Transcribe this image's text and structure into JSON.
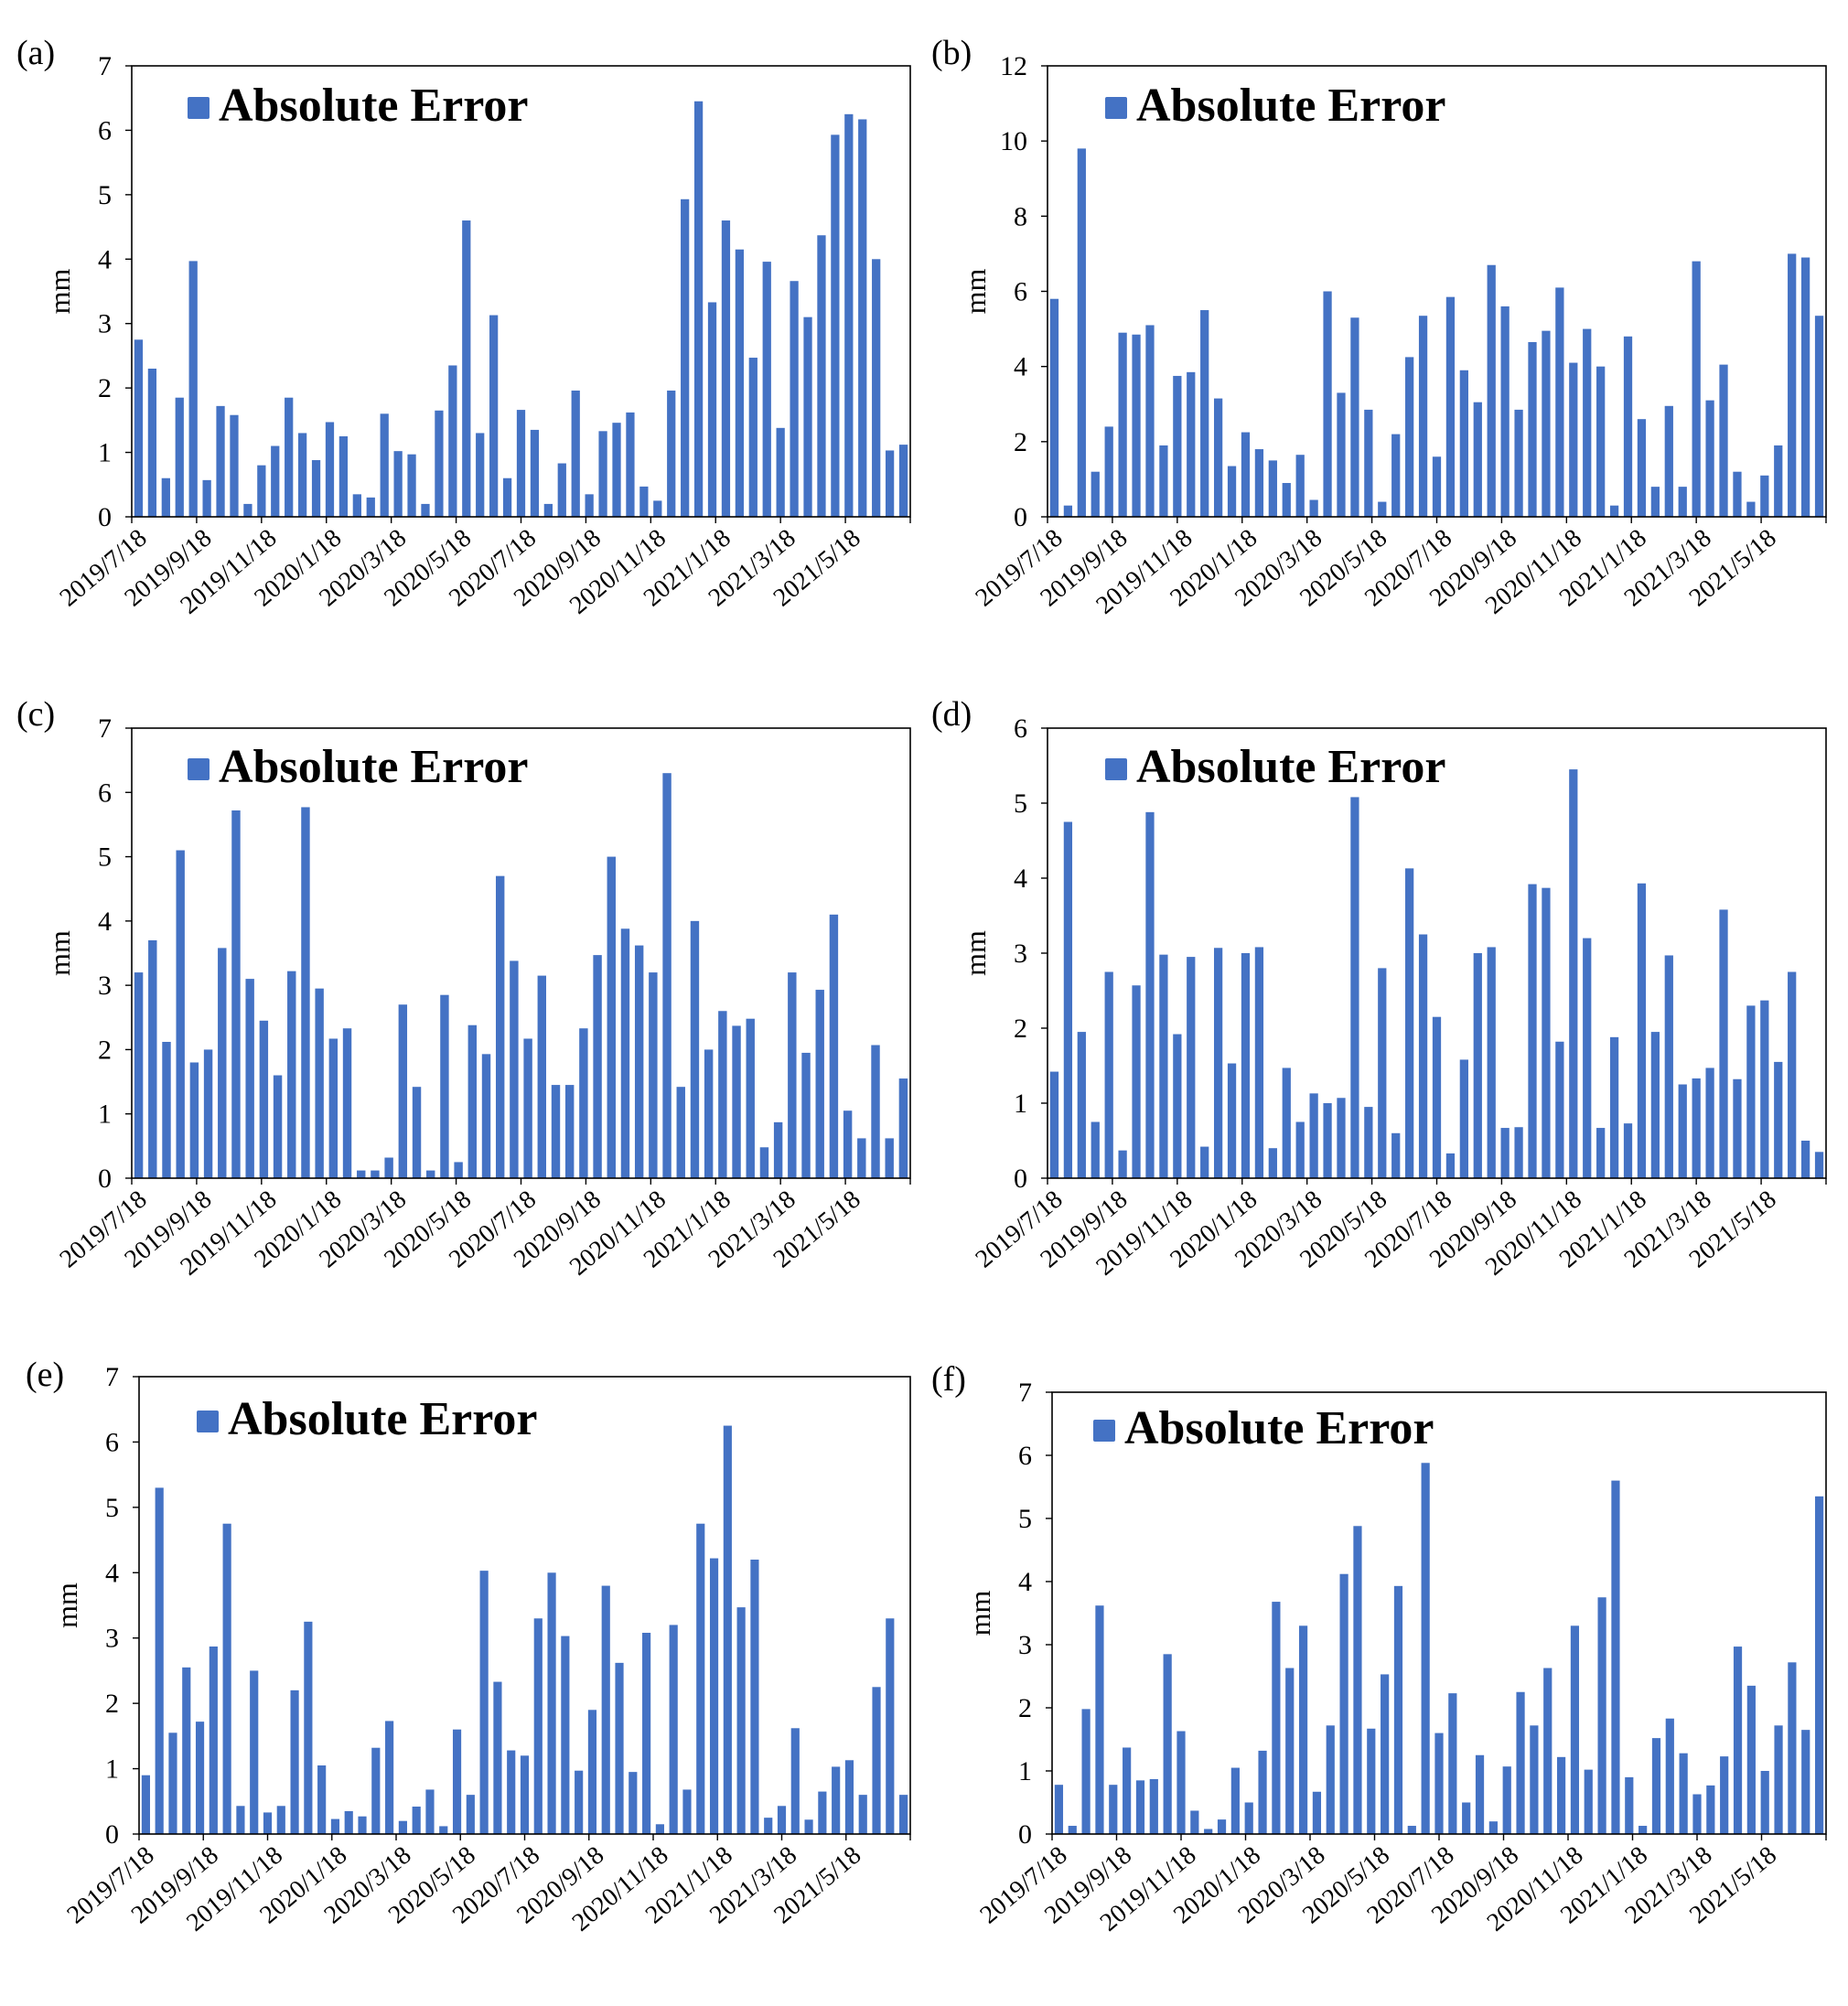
{
  "figure": {
    "legend_marker_color": "#4472C4",
    "bar_color": "#4472C4"
  },
  "chart_data": [
    {
      "panel_label": "(a)",
      "type": "bar",
      "legend": "Absolute Error",
      "ylabel": "mm",
      "ylim": [
        0,
        7
      ],
      "yticks": [
        "0",
        "1",
        "2",
        "3",
        "4",
        "5",
        "6",
        "7"
      ],
      "xtick_labels": [
        "2019/7/18",
        "2019/9/18",
        "2019/11/18",
        "2020/1/18",
        "2020/3/18",
        "2020/5/18",
        "2020/7/18",
        "2020/9/18",
        "2020/11/18",
        "2021/1/18",
        "2021/3/18",
        "2021/5/18"
      ],
      "values": [
        2.75,
        2.3,
        0.6,
        1.85,
        3.97,
        0.57,
        1.72,
        1.58,
        0.2,
        0.8,
        1.1,
        1.85,
        1.3,
        0.88,
        1.47,
        1.25,
        0.35,
        0.3,
        1.6,
        1.02,
        0.97,
        0.2,
        1.65,
        2.35,
        4.6,
        1.3,
        3.13,
        0.6,
        1.66,
        1.35,
        0.2,
        0.83,
        1.96,
        0.35,
        1.33,
        1.46,
        1.62,
        0.47,
        0.25,
        1.96,
        4.93,
        6.45,
        3.33,
        4.6,
        4.15,
        2.47,
        3.96,
        1.38,
        3.66,
        3.1,
        4.37,
        5.93,
        6.25,
        6.17,
        4.0,
        1.03,
        1.12
      ]
    },
    {
      "panel_label": "(b)",
      "type": "bar",
      "legend": "Absolute Error",
      "ylabel": "mm",
      "ylim": [
        0,
        12
      ],
      "yticks": [
        "0",
        "2",
        "4",
        "6",
        "8",
        "10",
        "12"
      ],
      "xtick_labels": [
        "2019/7/18",
        "2019/9/18",
        "2019/11/18",
        "2020/1/18",
        "2020/3/18",
        "2020/5/18",
        "2020/7/18",
        "2020/9/18",
        "2020/11/18",
        "2021/1/18",
        "2021/3/18",
        "2021/5/18"
      ],
      "values": [
        5.8,
        0.3,
        9.8,
        1.2,
        2.4,
        4.9,
        4.85,
        5.1,
        1.9,
        3.75,
        3.85,
        5.5,
        3.15,
        1.35,
        2.25,
        1.8,
        1.5,
        0.9,
        1.65,
        0.45,
        6.0,
        3.3,
        5.3,
        2.85,
        0.4,
        2.2,
        4.25,
        5.35,
        1.6,
        5.85,
        3.9,
        3.05,
        6.7,
        5.6,
        2.85,
        4.65,
        4.95,
        6.1,
        4.1,
        5.0,
        4.0,
        0.3,
        4.8,
        2.6,
        0.8,
        2.95,
        0.8,
        6.8,
        3.1,
        4.05,
        1.2,
        0.4,
        1.1,
        1.9,
        7.0,
        6.9,
        5.35
      ]
    },
    {
      "panel_label": "(c)",
      "type": "bar",
      "legend": "Absolute Error",
      "ylabel": "mm",
      "ylim": [
        0,
        7
      ],
      "yticks": [
        "0",
        "1",
        "2",
        "3",
        "4",
        "5",
        "6",
        "7"
      ],
      "xtick_labels": [
        "2019/7/18",
        "2019/9/18",
        "2019/11/18",
        "2020/1/18",
        "2020/3/18",
        "2020/5/18",
        "2020/7/18",
        "2020/9/18",
        "2020/11/18",
        "2021/1/18",
        "2021/3/18",
        "2021/5/18"
      ],
      "values": [
        3.2,
        3.7,
        2.12,
        5.1,
        1.8,
        2.0,
        3.58,
        5.72,
        3.1,
        2.45,
        1.6,
        3.22,
        5.77,
        2.95,
        2.17,
        2.33,
        0.12,
        0.12,
        0.32,
        2.7,
        1.42,
        0.12,
        2.85,
        0.25,
        2.38,
        1.93,
        4.7,
        3.38,
        2.17,
        3.15,
        1.45,
        1.45,
        2.33,
        3.47,
        5.0,
        3.88,
        3.62,
        3.2,
        6.3,
        1.42,
        4.0,
        2.0,
        2.6,
        2.37,
        2.48,
        0.48,
        0.87,
        3.2,
        1.95,
        2.93,
        4.1,
        1.05,
        0.62,
        2.07,
        0.62,
        1.55
      ]
    },
    {
      "panel_label": "(d)",
      "type": "bar",
      "legend": "Absolute Error",
      "ylabel": "mm",
      "ylim": [
        0,
        6
      ],
      "yticks": [
        "0",
        "1",
        "2",
        "3",
        "4",
        "5",
        "6"
      ],
      "xtick_labels": [
        "2019/7/18",
        "2019/9/18",
        "2019/11/18",
        "2020/1/18",
        "2020/3/18",
        "2020/5/18",
        "2020/7/18",
        "2020/9/18",
        "2020/11/18",
        "2021/1/18",
        "2021/3/18",
        "2021/5/18"
      ],
      "values": [
        1.42,
        4.75,
        1.95,
        0.75,
        2.75,
        0.37,
        2.57,
        4.88,
        2.98,
        1.92,
        2.95,
        0.42,
        3.07,
        1.53,
        3.0,
        3.08,
        0.4,
        1.47,
        0.75,
        1.13,
        1.0,
        1.07,
        5.08,
        0.95,
        2.8,
        0.6,
        4.13,
        3.25,
        2.15,
        0.33,
        1.58,
        3.0,
        3.08,
        0.67,
        0.68,
        3.92,
        3.87,
        1.82,
        5.45,
        3.2,
        0.67,
        1.88,
        0.73,
        3.93,
        1.95,
        2.97,
        1.25,
        1.33,
        1.47,
        3.58,
        1.32,
        2.3,
        2.37,
        1.55,
        2.75,
        0.5,
        0.35
      ]
    },
    {
      "panel_label": "(e)",
      "type": "bar",
      "legend": "Absolute Error",
      "ylabel": "mm",
      "ylim": [
        0,
        7
      ],
      "yticks": [
        "0",
        "1",
        "2",
        "3",
        "4",
        "5",
        "6",
        "7"
      ],
      "xtick_labels": [
        "2019/7/18",
        "2019/9/18",
        "2019/11/18",
        "2020/1/18",
        "2020/3/18",
        "2020/5/18",
        "2020/7/18",
        "2020/9/18",
        "2020/11/18",
        "2021/1/18",
        "2021/3/18",
        "2021/5/18"
      ],
      "values": [
        0.9,
        5.3,
        1.55,
        2.55,
        1.72,
        2.87,
        4.75,
        0.43,
        2.5,
        0.33,
        0.43,
        2.2,
        3.25,
        1.05,
        0.23,
        0.35,
        0.27,
        1.32,
        1.73,
        0.2,
        0.42,
        0.68,
        0.12,
        1.6,
        0.6,
        4.03,
        2.33,
        1.28,
        1.2,
        3.3,
        4.0,
        3.03,
        0.97,
        1.9,
        3.8,
        2.62,
        0.95,
        3.08,
        0.15,
        3.2,
        0.68,
        4.75,
        4.22,
        6.25,
        3.47,
        4.2,
        0.25,
        0.43,
        1.62,
        0.22,
        0.65,
        1.03,
        1.13,
        0.6,
        2.25,
        3.3,
        0.6
      ]
    },
    {
      "panel_label": "(f)",
      "type": "bar",
      "legend": "Absolute Error",
      "ylabel": "mm",
      "ylim": [
        0,
        7
      ],
      "yticks": [
        "0",
        "1",
        "2",
        "3",
        "4",
        "5",
        "6",
        "7"
      ],
      "xtick_labels": [
        "2019/7/18",
        "2019/9/18",
        "2019/11/18",
        "2020/1/18",
        "2020/3/18",
        "2020/5/18",
        "2020/7/18",
        "2020/9/18",
        "2020/11/18",
        "2021/1/18",
        "2021/3/18",
        "2021/5/18"
      ],
      "values": [
        0.78,
        0.13,
        1.98,
        3.62,
        0.78,
        1.37,
        0.85,
        0.87,
        2.85,
        1.63,
        0.37,
        0.08,
        0.23,
        1.05,
        0.5,
        1.32,
        3.68,
        2.63,
        3.3,
        0.67,
        1.72,
        4.12,
        4.88,
        1.67,
        2.53,
        3.93,
        0.13,
        5.88,
        1.6,
        2.23,
        0.5,
        1.25,
        0.2,
        1.07,
        2.25,
        1.72,
        2.63,
        1.22,
        3.3,
        1.02,
        3.75,
        5.6,
        0.9,
        0.13,
        1.52,
        1.83,
        1.28,
        0.63,
        0.77,
        1.23,
        2.97,
        2.35,
        1.0,
        1.72,
        2.72,
        1.65,
        5.35
      ]
    }
  ]
}
